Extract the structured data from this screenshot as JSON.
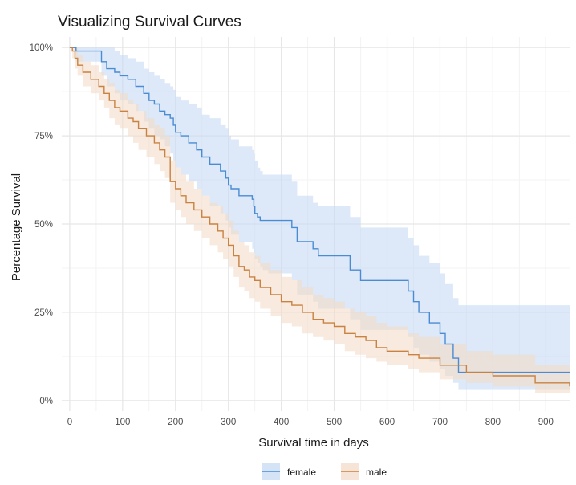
{
  "chart_data": {
    "type": "line",
    "title": "Visualizing Survival Curves",
    "xlabel": "Survival time in days",
    "ylabel": "Percentage Survival",
    "xlim": [
      -15,
      945
    ],
    "ylim": [
      -0.03,
      1.03
    ],
    "x_ticks": [
      0,
      100,
      200,
      300,
      400,
      500,
      600,
      700,
      800,
      900
    ],
    "x_tick_labels": [
      "0",
      "100",
      "200",
      "300",
      "400",
      "500",
      "600",
      "700",
      "800",
      "900"
    ],
    "y_ticks": [
      0,
      0.25,
      0.5,
      0.75,
      1.0
    ],
    "y_tick_labels": [
      "0%",
      "25%",
      "50%",
      "75%",
      "100%"
    ],
    "grid": true,
    "legend_position": "bottom",
    "series": [
      {
        "name": "female",
        "color": "#4A8BD4",
        "fill_color": "#C7DAF4",
        "x": [
          0,
          12,
          60,
          70,
          85,
          95,
          110,
          125,
          140,
          150,
          160,
          170,
          180,
          190,
          196,
          200,
          210,
          225,
          240,
          250,
          265,
          285,
          295,
          300,
          305,
          320,
          345,
          348,
          350,
          355,
          360,
          365,
          375,
          420,
          430,
          430,
          460,
          470,
          500,
          530,
          550,
          640,
          650,
          660,
          680,
          700,
          710,
          725,
          735,
          765,
          945
        ],
        "y": [
          1.0,
          0.99,
          0.96,
          0.94,
          0.93,
          0.92,
          0.91,
          0.89,
          0.87,
          0.85,
          0.84,
          0.82,
          0.81,
          0.8,
          0.78,
          0.76,
          0.75,
          0.73,
          0.71,
          0.69,
          0.67,
          0.65,
          0.63,
          0.61,
          0.6,
          0.58,
          0.57,
          0.55,
          0.53,
          0.52,
          0.51,
          0.51,
          0.51,
          0.49,
          0.47,
          0.45,
          0.43,
          0.41,
          0.41,
          0.37,
          0.34,
          0.31,
          0.28,
          0.25,
          0.22,
          0.19,
          0.16,
          0.12,
          0.08,
          0.08,
          0.08
        ],
        "upper": [
          1.0,
          1.0,
          1.0,
          1.0,
          0.99,
          0.98,
          0.97,
          0.96,
          0.94,
          0.93,
          0.92,
          0.91,
          0.9,
          0.89,
          0.88,
          0.86,
          0.85,
          0.84,
          0.83,
          0.81,
          0.8,
          0.78,
          0.77,
          0.75,
          0.74,
          0.72,
          0.71,
          0.7,
          0.68,
          0.66,
          0.65,
          0.64,
          0.64,
          0.62,
          0.6,
          0.58,
          0.56,
          0.55,
          0.55,
          0.52,
          0.49,
          0.46,
          0.44,
          0.41,
          0.39,
          0.36,
          0.33,
          0.29,
          0.27,
          0.27,
          0.27
        ],
        "lower": [
          1.0,
          0.96,
          0.92,
          0.89,
          0.87,
          0.85,
          0.84,
          0.82,
          0.79,
          0.77,
          0.75,
          0.74,
          0.72,
          0.7,
          0.68,
          0.66,
          0.64,
          0.62,
          0.6,
          0.58,
          0.55,
          0.53,
          0.51,
          0.49,
          0.47,
          0.45,
          0.43,
          0.42,
          0.4,
          0.39,
          0.38,
          0.37,
          0.36,
          0.34,
          0.32,
          0.3,
          0.28,
          0.26,
          0.26,
          0.23,
          0.2,
          0.18,
          0.15,
          0.13,
          0.11,
          0.09,
          0.07,
          0.05,
          0.03,
          0.03,
          0.03
        ]
      },
      {
        "name": "male",
        "color": "#C98241",
        "fill_color": "#F3DCC8",
        "x": [
          0,
          5,
          10,
          15,
          25,
          40,
          55,
          65,
          75,
          85,
          95,
          110,
          120,
          130,
          145,
          160,
          170,
          180,
          190,
          200,
          210,
          220,
          235,
          250,
          265,
          280,
          290,
          300,
          310,
          320,
          330,
          340,
          350,
          360,
          380,
          400,
          420,
          440,
          460,
          480,
          500,
          520,
          540,
          560,
          580,
          600,
          640,
          660,
          700,
          750,
          800,
          880,
          945
        ],
        "y": [
          1.0,
          0.99,
          0.97,
          0.95,
          0.93,
          0.91,
          0.89,
          0.87,
          0.85,
          0.83,
          0.82,
          0.8,
          0.79,
          0.77,
          0.75,
          0.73,
          0.71,
          0.69,
          0.62,
          0.6,
          0.58,
          0.56,
          0.54,
          0.52,
          0.5,
          0.48,
          0.46,
          0.44,
          0.41,
          0.38,
          0.37,
          0.35,
          0.34,
          0.32,
          0.3,
          0.28,
          0.27,
          0.25,
          0.23,
          0.22,
          0.21,
          0.19,
          0.18,
          0.17,
          0.15,
          0.14,
          0.13,
          0.12,
          0.1,
          0.08,
          0.07,
          0.05,
          0.04
        ],
        "upper": [
          1.0,
          1.0,
          1.0,
          0.98,
          0.96,
          0.95,
          0.93,
          0.91,
          0.9,
          0.88,
          0.87,
          0.85,
          0.84,
          0.82,
          0.8,
          0.78,
          0.77,
          0.75,
          0.68,
          0.66,
          0.64,
          0.62,
          0.6,
          0.58,
          0.56,
          0.55,
          0.53,
          0.51,
          0.48,
          0.45,
          0.44,
          0.42,
          0.41,
          0.39,
          0.37,
          0.35,
          0.34,
          0.32,
          0.3,
          0.29,
          0.28,
          0.26,
          0.25,
          0.24,
          0.22,
          0.21,
          0.19,
          0.18,
          0.16,
          0.14,
          0.13,
          0.1,
          0.09
        ],
        "lower": [
          1.0,
          0.97,
          0.94,
          0.92,
          0.89,
          0.87,
          0.85,
          0.83,
          0.8,
          0.78,
          0.77,
          0.75,
          0.73,
          0.71,
          0.69,
          0.67,
          0.65,
          0.63,
          0.56,
          0.54,
          0.52,
          0.5,
          0.48,
          0.46,
          0.44,
          0.42,
          0.4,
          0.38,
          0.35,
          0.32,
          0.31,
          0.29,
          0.28,
          0.26,
          0.24,
          0.22,
          0.21,
          0.19,
          0.18,
          0.17,
          0.16,
          0.14,
          0.13,
          0.12,
          0.11,
          0.1,
          0.09,
          0.08,
          0.06,
          0.05,
          0.04,
          0.02,
          0.02
        ]
      }
    ]
  }
}
